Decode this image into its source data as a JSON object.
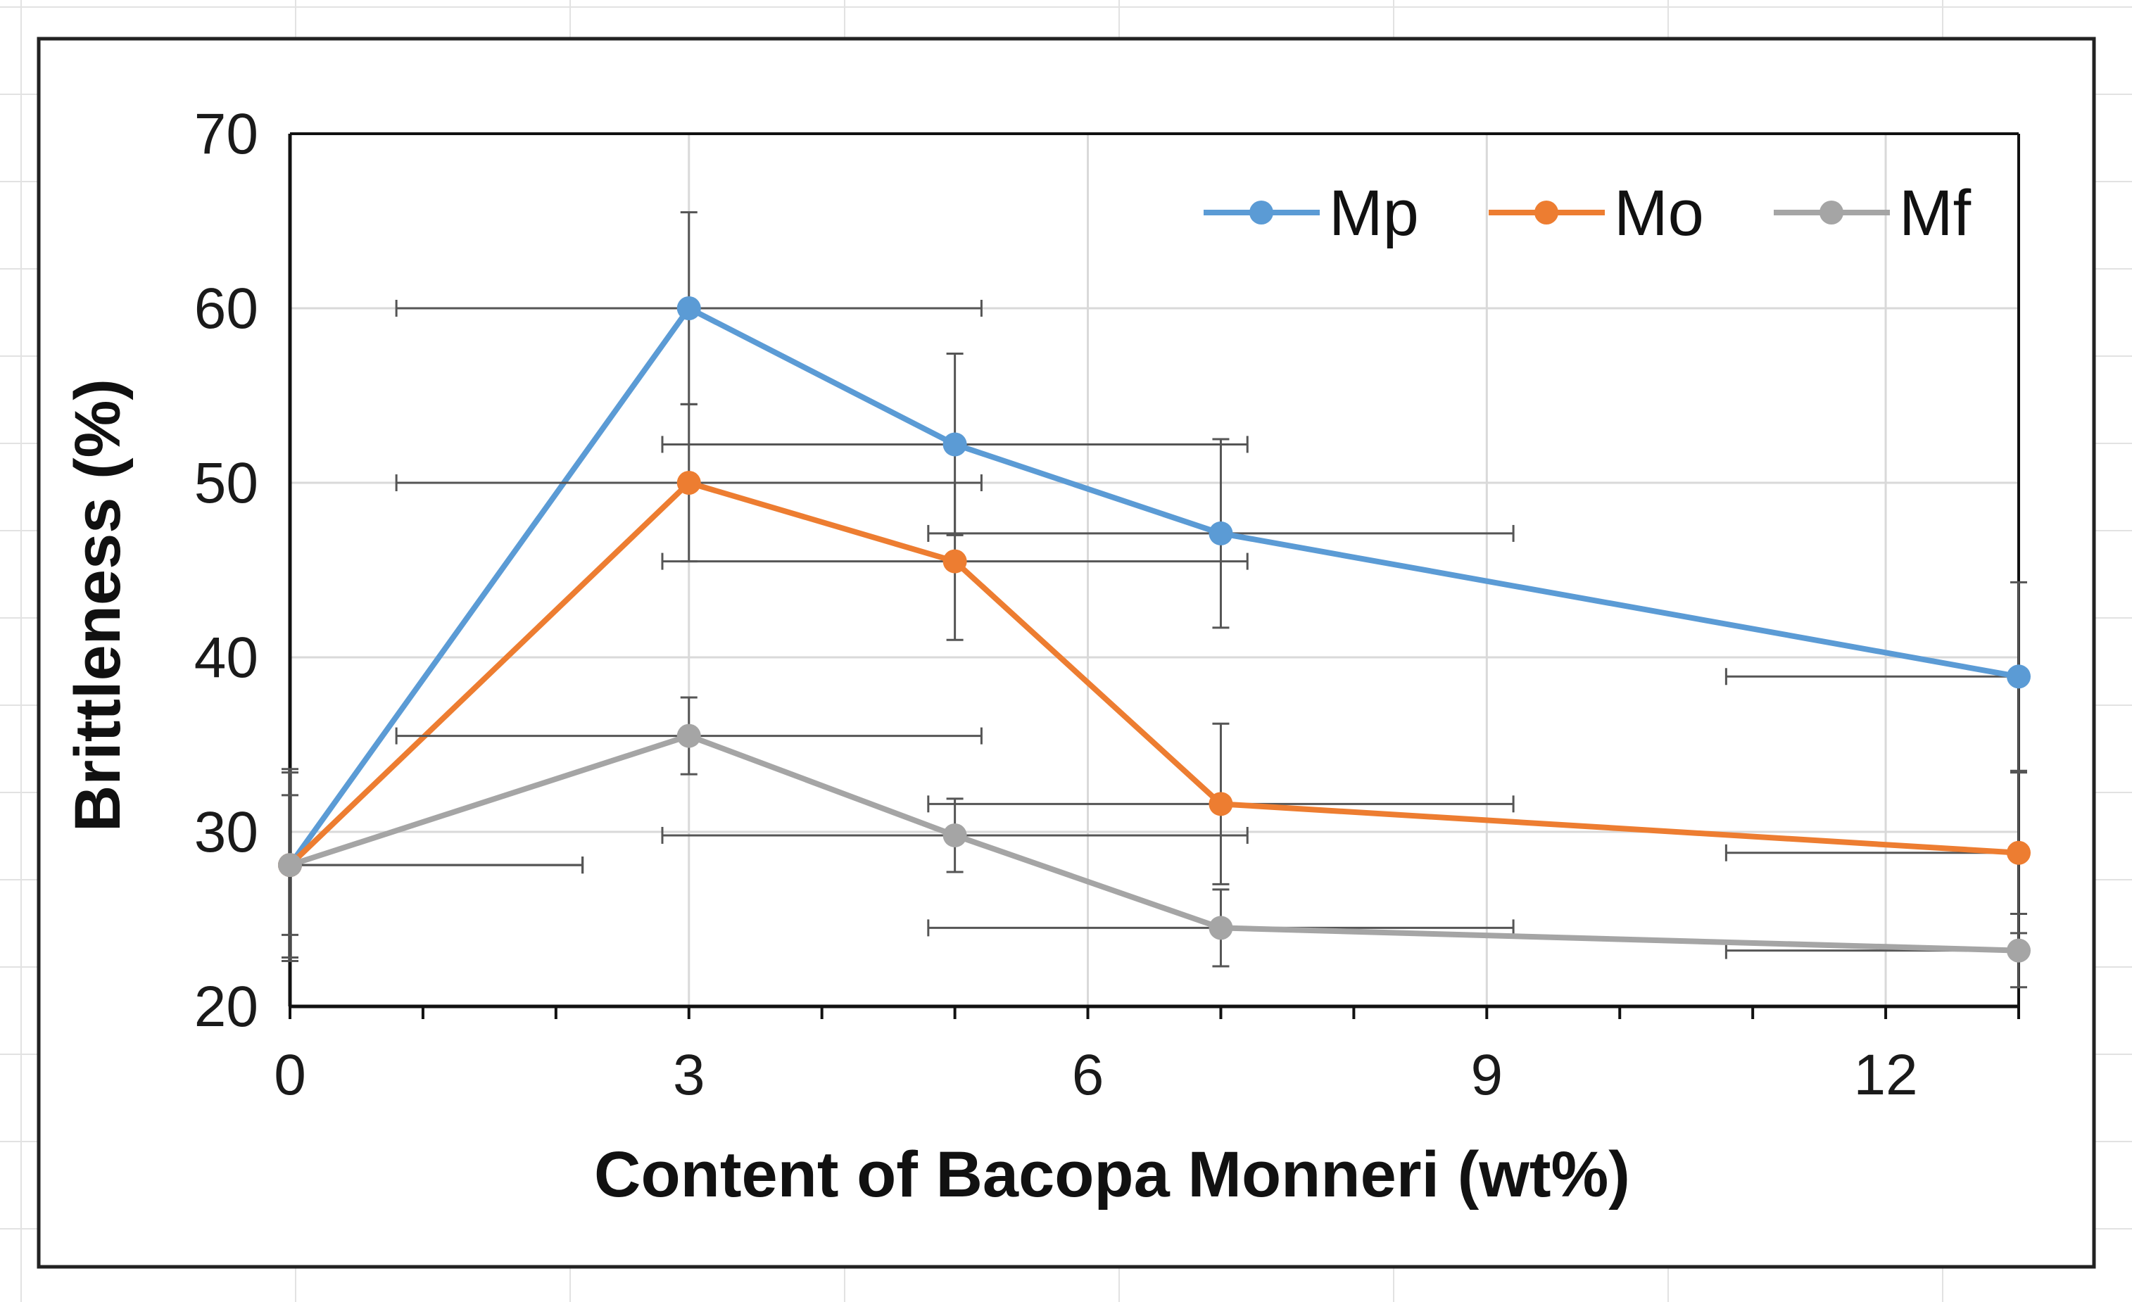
{
  "chart_data": {
    "type": "line",
    "title": "",
    "xlabel": "Content of Bacopa Monneri (wt%)",
    "ylabel": "Brittleness (%)",
    "xlim": [
      0,
      13
    ],
    "ylim": [
      20,
      70
    ],
    "x_ticks": [
      "0",
      "3",
      "6",
      "9",
      "12"
    ],
    "y_ticks": [
      "20",
      "30",
      "40",
      "50",
      "60",
      "70"
    ],
    "grid": true,
    "legend_position": "top-right",
    "x": [
      0,
      3,
      5,
      7,
      13
    ],
    "series": [
      {
        "name": "Mp",
        "color": "#5B9BD5",
        "values": [
          28.1,
          60.0,
          52.2,
          47.1,
          38.9
        ],
        "y_error": [
          5.5,
          5.5,
          5.2,
          5.4,
          5.4
        ],
        "x_error": [
          2.2,
          2.2,
          2.2,
          2.2,
          2.2
        ]
      },
      {
        "name": "Mo",
        "color": "#ED7D31",
        "values": [
          28.1,
          50.0,
          45.5,
          31.6,
          28.8
        ],
        "y_error": [
          4.0,
          4.5,
          4.5,
          4.6,
          4.6
        ],
        "x_error": [
          2.2,
          2.2,
          2.2,
          2.2,
          2.2
        ]
      },
      {
        "name": "Mf",
        "color": "#A5A5A5",
        "values": [
          28.1,
          35.5,
          29.8,
          24.5,
          23.2
        ],
        "y_error": [
          5.3,
          2.2,
          2.1,
          2.2,
          2.1
        ],
        "x_error": [
          2.2,
          2.2,
          2.2,
          2.2,
          2.2
        ]
      }
    ]
  }
}
